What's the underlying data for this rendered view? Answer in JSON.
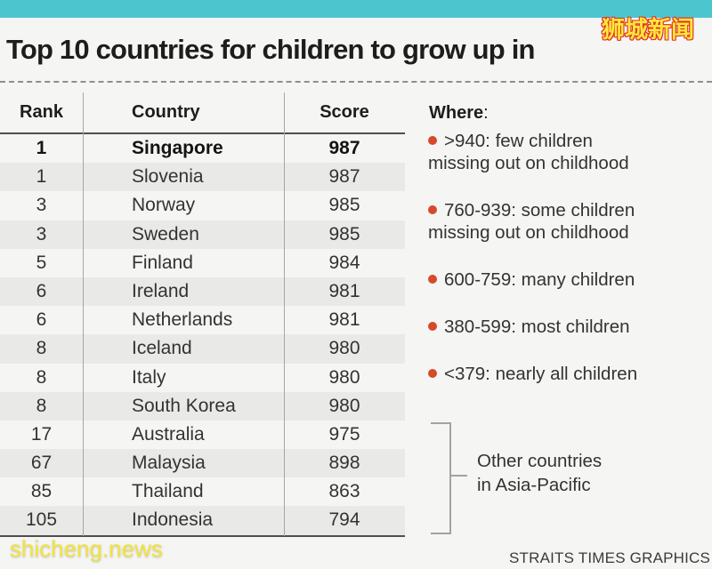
{
  "header": {
    "title": "Top 10 countries for children to grow up in"
  },
  "watermarks": {
    "top_right": "狮城新闻",
    "bottom_left": "shicheng.news"
  },
  "table": {
    "columns": [
      "Rank",
      "Country",
      "Score"
    ],
    "rows": [
      {
        "rank": "1",
        "country": "Singapore",
        "score": "987",
        "highlight": true
      },
      {
        "rank": "1",
        "country": "Slovenia",
        "score": "987"
      },
      {
        "rank": "3",
        "country": "Norway",
        "score": "985"
      },
      {
        "rank": "3",
        "country": "Sweden",
        "score": "985"
      },
      {
        "rank": "5",
        "country": "Finland",
        "score": "984"
      },
      {
        "rank": "6",
        "country": "Ireland",
        "score": "981"
      },
      {
        "rank": "6",
        "country": "Netherlands",
        "score": "981"
      },
      {
        "rank": "8",
        "country": "Iceland",
        "score": "980"
      },
      {
        "rank": "8",
        "country": "Italy",
        "score": "980"
      },
      {
        "rank": "8",
        "country": "South Korea",
        "score": "980"
      },
      {
        "rank": "17",
        "country": "Australia",
        "score": "975"
      },
      {
        "rank": "67",
        "country": "Malaysia",
        "score": "898"
      },
      {
        "rank": "85",
        "country": "Thailand",
        "score": "863"
      },
      {
        "rank": "105",
        "country": "Indonesia",
        "score": "794"
      }
    ]
  },
  "legend": {
    "title_bold": "Where",
    "title_colon": ":",
    "items": [
      {
        "line1": ">940: few children",
        "line2": "missing out on childhood"
      },
      {
        "line1": "760-939: some children",
        "line2": "missing out on childhood"
      },
      {
        "line1": "600-759: many children",
        "line2": ""
      },
      {
        "line1": "380-599: most children",
        "line2": ""
      },
      {
        "line1": "<379: nearly all children",
        "line2": ""
      }
    ]
  },
  "annotation": {
    "line1": "Other countries",
    "line2": "in Asia-Pacific"
  },
  "footer": {
    "credit": "STRAITS TIMES GRAPHICS"
  },
  "colors": {
    "accent_teal": "#4cc5ce",
    "stripe_gray": "#e9e9e7",
    "bullet_red": "#d44a2a",
    "watermark_yellow": "#ffe83b",
    "watermark_outline_red": "#e03028",
    "background": "#f5f5f3"
  },
  "chart_data": {
    "type": "table",
    "title": "Top 10 countries for children to grow up in",
    "columns": [
      "Rank",
      "Country",
      "Score"
    ],
    "rows": [
      [
        1,
        "Singapore",
        987
      ],
      [
        1,
        "Slovenia",
        987
      ],
      [
        3,
        "Norway",
        985
      ],
      [
        3,
        "Sweden",
        985
      ],
      [
        5,
        "Finland",
        984
      ],
      [
        6,
        "Ireland",
        981
      ],
      [
        6,
        "Netherlands",
        981
      ],
      [
        8,
        "Iceland",
        980
      ],
      [
        8,
        "Italy",
        980
      ],
      [
        8,
        "South Korea",
        980
      ],
      [
        17,
        "Australia",
        975
      ],
      [
        67,
        "Malaysia",
        898
      ],
      [
        85,
        "Thailand",
        863
      ],
      [
        105,
        "Indonesia",
        794
      ]
    ],
    "highlighted_row": "Singapore",
    "score_bands": [
      {
        "range": ">940",
        "meaning": "few children missing out on childhood"
      },
      {
        "range": "760-939",
        "meaning": "some children missing out on childhood"
      },
      {
        "range": "600-759",
        "meaning": "many children"
      },
      {
        "range": "380-599",
        "meaning": "most children"
      },
      {
        "range": "<379",
        "meaning": "nearly all children"
      }
    ],
    "bracket_annotation": "Other countries in Asia-Pacific (rows: Australia, Malaysia, Thailand, Indonesia)",
    "source": "STRAITS TIMES GRAPHICS"
  }
}
